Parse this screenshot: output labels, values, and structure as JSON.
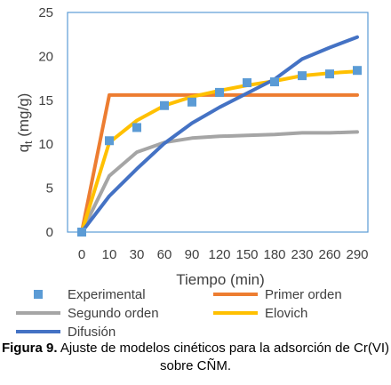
{
  "chart_data": {
    "type": "line",
    "categories": [
      "0",
      "10",
      "30",
      "60",
      "90",
      "120",
      "150",
      "180",
      "230",
      "260",
      "290"
    ],
    "xlabel": "Tiempo (min)",
    "ylabel": "qt (mg/g)",
    "ylabel_parts": {
      "base": "q",
      "sub": "t",
      "rest": " (mg/g)"
    },
    "ylim": [
      0,
      25
    ],
    "yticks": [
      0,
      5,
      10,
      15,
      20,
      25
    ],
    "grid": false,
    "legend_position": "bottom",
    "series": [
      {
        "name": "Experimental",
        "kind": "markers",
        "color": "#5B9BD5",
        "values": [
          0,
          10.4,
          11.9,
          14.4,
          14.8,
          15.9,
          17.0,
          17.1,
          17.8,
          18.0,
          18.4
        ]
      },
      {
        "name": "Primer orden",
        "kind": "line",
        "color": "#ED7D31",
        "values": [
          0,
          15.6,
          15.6,
          15.6,
          15.6,
          15.6,
          15.6,
          15.6,
          15.6,
          15.6,
          15.6
        ]
      },
      {
        "name": "Segundo orden",
        "kind": "line",
        "color": "#A5A5A5",
        "values": [
          0,
          6.4,
          9.1,
          10.2,
          10.7,
          10.9,
          11.0,
          11.1,
          11.3,
          11.3,
          11.4
        ]
      },
      {
        "name": "Elovich",
        "kind": "line",
        "color": "#FFC000",
        "values": [
          0,
          10.2,
          12.7,
          14.4,
          15.4,
          16.1,
          16.7,
          17.2,
          17.8,
          18.1,
          18.3
        ]
      },
      {
        "name": "Difusión",
        "kind": "line",
        "color": "#4472C4",
        "values": [
          0,
          4.1,
          7.2,
          10.1,
          12.4,
          14.2,
          15.8,
          17.4,
          19.7,
          21.0,
          22.2
        ]
      }
    ]
  },
  "caption": {
    "lead": "Figura 9.",
    "text": " Ajuste de modelos cinéticos para la adsorción de Cr(VI) sobre CÑM."
  }
}
